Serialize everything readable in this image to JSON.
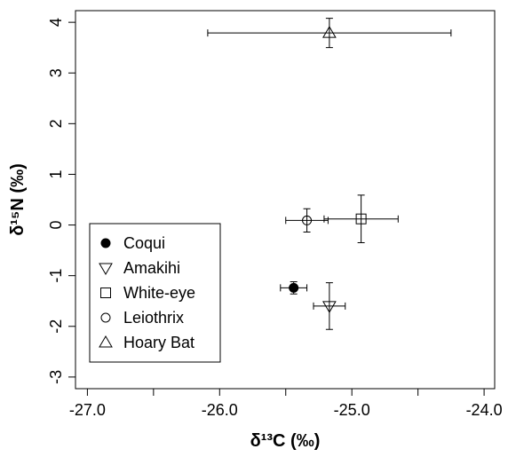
{
  "chart_data": {
    "type": "scatter",
    "x_label": "δ¹³C (‰)",
    "y_label": "δ¹⁵N (‰)",
    "xlim": [
      -27.09,
      -23.92
    ],
    "ylim": [
      -3.23,
      4.23
    ],
    "xticks": [
      {
        "value": -27,
        "label": "-27.0"
      },
      {
        "value": -26,
        "label": "-26.0"
      },
      {
        "value": -25,
        "label": "-25.0"
      },
      {
        "value": -24,
        "label": "-24.0"
      }
    ],
    "xminorticks": [
      -26.5,
      -25.5,
      -24.5
    ],
    "yticks": [
      -3,
      -2,
      -1,
      0,
      1,
      2,
      3,
      4
    ],
    "legend_position": "bottom-left",
    "color": "#000000",
    "series": [
      {
        "name": "Coqui",
        "marker": "filled-circle",
        "x": [
          -25.44
        ],
        "y": [
          -1.24
        ],
        "xerr": [
          0.1
        ],
        "yerr": [
          0.12
        ]
      },
      {
        "name": "Amakihi",
        "marker": "triangle-down",
        "x": [
          -25.17
        ],
        "y": [
          -1.6
        ],
        "xerr": [
          0.12
        ],
        "yerr": [
          0.46
        ]
      },
      {
        "name": "White-eye",
        "marker": "square",
        "x": [
          -24.93
        ],
        "y": [
          0.12
        ],
        "xerr": [
          0.28
        ],
        "yerr": [
          0.47
        ]
      },
      {
        "name": "Leiothrix",
        "marker": "circle",
        "x": [
          -25.34
        ],
        "y": [
          0.09
        ],
        "xerr": [
          0.16
        ],
        "yerr": [
          0.23
        ]
      },
      {
        "name": "Hoary Bat",
        "marker": "triangle-up",
        "x": [
          -25.17
        ],
        "y": [
          3.79
        ],
        "xerr": [
          0.92
        ],
        "yerr": [
          0.29
        ]
      }
    ]
  }
}
